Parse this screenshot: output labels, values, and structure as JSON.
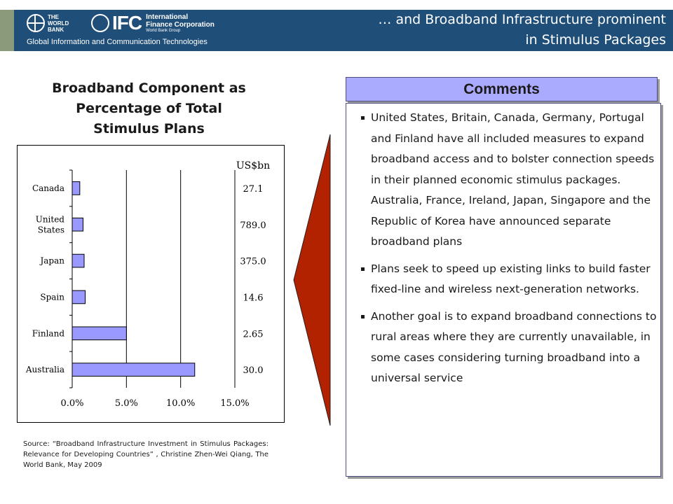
{
  "header": {
    "title_line1": "… and Broadband Infrastructure prominent",
    "title_line2": "in Stimulus Packages",
    "subtitle": "Global Information and Communication Technologies",
    "world_bank_logo_text": "THE\nWORLD\nBANK",
    "ifc_mark": "IFC",
    "ifc_name_line1": "International",
    "ifc_name_line2": "Finance Corporation",
    "ifc_name_line3": "World Bank Group",
    "colors": {
      "bar": "#1f4e79",
      "text": "#ffffff"
    }
  },
  "chart_panel": {
    "title_lines": [
      "Broadband Component as",
      "Percentage of Total",
      "Stimulus Plans"
    ],
    "source_note": "Source: “Broadband Infrastructure Investment in Stimulus Packages: Relevance for Developing Countries” , Christine Zhen-Wei Qiang, The World Bank, May 2009"
  },
  "chart_data": {
    "type": "bar",
    "orientation": "horizontal",
    "categories": [
      "Canada",
      "United States",
      "Japan",
      "Spain",
      "Finland",
      "Australia"
    ],
    "category_label_lines": [
      [
        "Canada"
      ],
      [
        "United",
        "States"
      ],
      [
        "Japan"
      ],
      [
        "Spain"
      ],
      [
        "Finland"
      ],
      [
        "Australia"
      ]
    ],
    "values": [
      0.7,
      1.0,
      1.1,
      1.2,
      5.0,
      11.3
    ],
    "value_unit": "%",
    "annotation_header": "US$bn",
    "annotations": [
      "27.1",
      "789.0",
      "375.0",
      "14.6",
      "2.65",
      "30.0"
    ],
    "xlim": [
      0,
      15
    ],
    "xticks": [
      0,
      5,
      10,
      15
    ],
    "xtick_labels": [
      "0.0%",
      "5.0%",
      "10.0%",
      "15.0%"
    ],
    "title": "Broadband Component as Percentage of Total Stimulus Plans",
    "xlabel": "",
    "ylabel": "",
    "grid": "vertical",
    "colors": {
      "bar_fill": "#9999ff",
      "bar_stroke": "#000000",
      "grid": "#000000"
    }
  },
  "comments": {
    "header": "Comments",
    "items": [
      "United States, Britain, Canada, Germany, Portugal and Finland have all included measures to expand broadband access and to bolster connection speeds in their planned economic stimulus packages. Australia, France, Ireland, Japan, Singapore and the Republic of Korea have announced separate broadband plans",
      "Plans seek to speed up existing links to build faster fixed-line and wireless next-generation networks.",
      "Another goal is to expand broadband connections to rural areas where they are currently unavailable, in some cases considering turning broadband into a universal service"
    ],
    "colors": {
      "header_fill": "#aaaaff",
      "border": "#4d4d80"
    }
  },
  "arrow": {
    "fill": "#b22200",
    "shape": "left-pointing-chevron"
  }
}
